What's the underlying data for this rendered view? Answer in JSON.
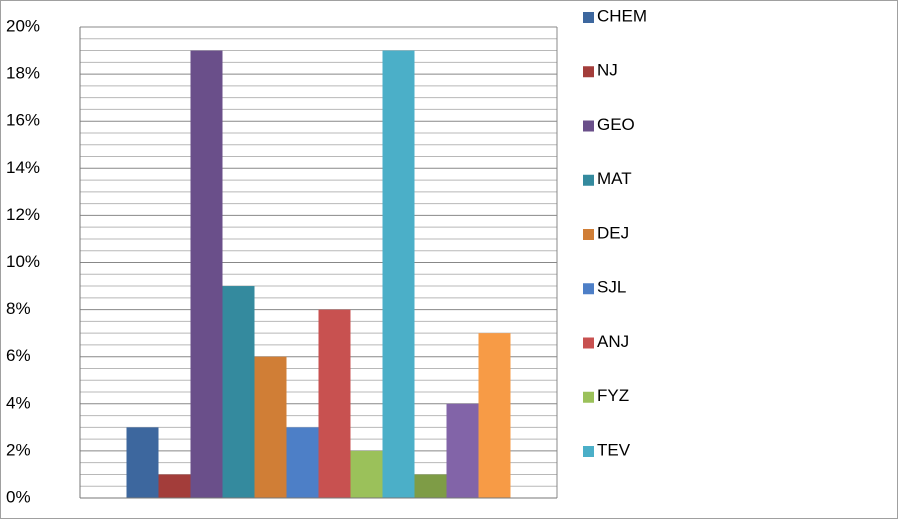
{
  "chart_data": {
    "type": "bar",
    "categories": [
      null
    ],
    "series": [
      {
        "name": "CHEM",
        "color": "#3d679e",
        "values": [
          3
        ]
      },
      {
        "name": "NJ",
        "color": "#a33d3a",
        "values": [
          1
        ]
      },
      {
        "name": "GEO",
        "color": "#6a4f8a",
        "values": [
          19
        ]
      },
      {
        "name": "MAT",
        "color": "#348a9e",
        "values": [
          9
        ]
      },
      {
        "name": "DEJ",
        "color": "#d07e36",
        "values": [
          6
        ]
      },
      {
        "name": "SJL",
        "color": "#4d7fc7",
        "values": [
          3
        ]
      },
      {
        "name": "ANJ",
        "color": "#c85150",
        "values": [
          8
        ]
      },
      {
        "name": "FYZ",
        "color": "#9bc15a",
        "values": [
          2
        ]
      },
      {
        "name": "TEV",
        "color": "#4bafc8",
        "values": [
          19
        ]
      },
      {
        "name": null,
        "color": "#7e9c46",
        "values": [
          1
        ]
      },
      {
        "name": null,
        "color": "#8264a8",
        "values": [
          4
        ]
      },
      {
        "name": null,
        "color": "#f79b46",
        "values": [
          7
        ]
      }
    ],
    "ylim": [
      0,
      20
    ],
    "yticks": [
      {
        "value": 0,
        "label": "0%"
      },
      {
        "value": 2,
        "label": "2%"
      },
      {
        "value": 4,
        "label": "4%"
      },
      {
        "value": 6,
        "label": "6%"
      },
      {
        "value": 8,
        "label": "8%"
      },
      {
        "value": 10,
        "label": "10%"
      },
      {
        "value": 12,
        "label": "12%"
      },
      {
        "value": 14,
        "label": "14%"
      },
      {
        "value": 16,
        "label": "16%"
      },
      {
        "value": 18,
        "label": "18%"
      },
      {
        "value": 20,
        "label": "20%"
      }
    ],
    "yminorticks": [
      0.5,
      1,
      1.5,
      2.5,
      3,
      3.5,
      4.5,
      5,
      5.5,
      6.5,
      7,
      7.5,
      8.5,
      9,
      9.5,
      10.5,
      11,
      11.5,
      12.5,
      13,
      13.5,
      14.5,
      15,
      15.5,
      16.5,
      17,
      17.5,
      18.5,
      19,
      19.5
    ],
    "grid": true,
    "legend": "right"
  }
}
